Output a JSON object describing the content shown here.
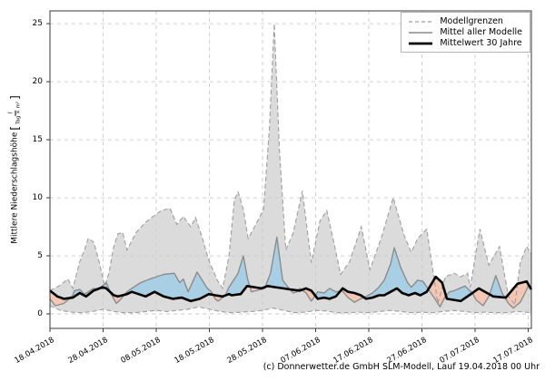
{
  "chart_data": {
    "type": "line",
    "title": "",
    "ylabel": {
      "text": "Mittlere Niederschlagshöhe",
      "bracket_open": "[",
      "unit_numerator": "l",
      "unit_denominator": "Tag × m²",
      "bracket_close": "]"
    },
    "x_ticks": [
      {
        "day": 0,
        "label": "18.04.2018"
      },
      {
        "day": 10,
        "label": "28.04.2018"
      },
      {
        "day": 20,
        "label": "08.05.2018"
      },
      {
        "day": 30,
        "label": "18.05.2018"
      },
      {
        "day": 40,
        "label": "28.05.2018"
      },
      {
        "day": 50,
        "label": "07.06.2018"
      },
      {
        "day": 60,
        "label": "17.06.2018"
      },
      {
        "day": 70,
        "label": "27.06.2018"
      },
      {
        "day": 80,
        "label": "07.07.2018"
      },
      {
        "day": 90,
        "label": "17.07.2018"
      }
    ],
    "y_ticks": [
      0,
      5,
      10,
      15,
      20,
      25
    ],
    "xlim": [
      0,
      90.6
    ],
    "ylim": [
      -1.25,
      26.1
    ],
    "grid": true,
    "legend_position": "top-right",
    "legend": [
      {
        "label": "Modellgrenzen",
        "style": "dashed-gray"
      },
      {
        "label": "Mittel aller Modelle",
        "style": "solid-gray"
      },
      {
        "label": "Mittelwert 30 Jahre",
        "style": "thick-black"
      }
    ],
    "colors": {
      "band_fill": "#dbdbdb",
      "band_edge": "#9e9e9e",
      "above_fill": "#a8cfe4",
      "below_fill": "#f4c6b4",
      "model_mean_line": "#8c8c8c",
      "clim_mean_line": "#000000",
      "grid_line": "#cacaca",
      "spine": "#3a3a3a"
    },
    "series": [
      {
        "name": "Modellgrenzen (oberes Band)",
        "role": "band_upper",
        "points": [
          [
            0,
            2.0
          ],
          [
            1.7,
            2.4
          ],
          [
            3.4,
            3.0
          ],
          [
            4.3,
            2.2
          ],
          [
            5.6,
            4.5
          ],
          [
            6.5,
            5.5
          ],
          [
            7.2,
            6.5
          ],
          [
            8.2,
            6.2
          ],
          [
            9.1,
            4.8
          ],
          [
            10.3,
            2.4
          ],
          [
            11.1,
            3.5
          ],
          [
            12,
            5.8
          ],
          [
            12.8,
            6.9
          ],
          [
            13.7,
            7.0
          ],
          [
            14.5,
            5.5
          ],
          [
            16.2,
            7.0
          ],
          [
            18,
            7.9
          ],
          [
            20.9,
            8.9
          ],
          [
            22.6,
            9.1
          ],
          [
            23.9,
            7.7
          ],
          [
            25.1,
            8.4
          ],
          [
            26.5,
            7.5
          ],
          [
            27.4,
            8.3
          ],
          [
            28.7,
            6.5
          ],
          [
            29.9,
            4.6
          ],
          [
            31.6,
            2.8
          ],
          [
            32.5,
            2.2
          ],
          [
            33.7,
            5.0
          ],
          [
            34.7,
            9.8
          ],
          [
            35.4,
            10.5
          ],
          [
            36.4,
            9.0
          ],
          [
            37.3,
            6.5
          ],
          [
            38.5,
            7.5
          ],
          [
            40.2,
            9.0
          ],
          [
            41.3,
            16.0
          ],
          [
            42.2,
            25.0
          ],
          [
            43.2,
            14.0
          ],
          [
            44.4,
            5.5
          ],
          [
            45.8,
            7.0
          ],
          [
            47.5,
            10.6
          ],
          [
            49.2,
            4.4
          ],
          [
            50.8,
            8.0
          ],
          [
            52.1,
            8.9
          ],
          [
            53.5,
            6.0
          ],
          [
            54.7,
            3.4
          ],
          [
            56.4,
            4.5
          ],
          [
            58.6,
            7.5
          ],
          [
            60.2,
            3.8
          ],
          [
            62.4,
            6.6
          ],
          [
            64.6,
            10.0
          ],
          [
            66.7,
            6.7
          ],
          [
            68,
            5.3
          ],
          [
            69.2,
            6.5
          ],
          [
            70.9,
            7.3
          ],
          [
            73,
            0.9
          ],
          [
            74.4,
            3.2
          ],
          [
            76.1,
            3.5
          ],
          [
            77.3,
            3.2
          ],
          [
            78.6,
            3.5
          ],
          [
            79.1,
            2.3
          ],
          [
            80.9,
            7.3
          ],
          [
            82.6,
            4.2
          ],
          [
            84.6,
            5.8
          ],
          [
            86.3,
            1.5
          ],
          [
            87.5,
            0.8
          ],
          [
            88.5,
            4.4
          ],
          [
            89.7,
            5.8
          ],
          [
            90.6,
            5.2
          ]
        ]
      },
      {
        "name": "Modellgrenzen (unteres Band)",
        "role": "band_lower",
        "points": [
          [
            0,
            0.7
          ],
          [
            2,
            0.3
          ],
          [
            4,
            0.15
          ],
          [
            6,
            0.1
          ],
          [
            8,
            0.2
          ],
          [
            10,
            0.4
          ],
          [
            12,
            0.2
          ],
          [
            14,
            0.1
          ],
          [
            16,
            0.1
          ],
          [
            18,
            0.2
          ],
          [
            20,
            0.3
          ],
          [
            22,
            0.2
          ],
          [
            24,
            0.3
          ],
          [
            26,
            0.4
          ],
          [
            28,
            0.6
          ],
          [
            30,
            0.4
          ],
          [
            32,
            0.2
          ],
          [
            34,
            0.1
          ],
          [
            36,
            0.15
          ],
          [
            38,
            0.2
          ],
          [
            40,
            0.3
          ],
          [
            42,
            0.5
          ],
          [
            44,
            0.3
          ],
          [
            46,
            0.1
          ],
          [
            48,
            0.15
          ],
          [
            50,
            0.3
          ],
          [
            52,
            0.25
          ],
          [
            54,
            0.1
          ],
          [
            56,
            0.1
          ],
          [
            58,
            0.15
          ],
          [
            60,
            0.1
          ],
          [
            62,
            0.2
          ],
          [
            64,
            0.3
          ],
          [
            66,
            0.2
          ],
          [
            68,
            0.1
          ],
          [
            70,
            0.15
          ],
          [
            72,
            0.1
          ],
          [
            74,
            0.2
          ],
          [
            76,
            0.3
          ],
          [
            78,
            0.2
          ],
          [
            80,
            0.1
          ],
          [
            82,
            0.15
          ],
          [
            84,
            0.1
          ],
          [
            86,
            0.1
          ],
          [
            88,
            0.2
          ],
          [
            90.6,
            0.1
          ]
        ]
      },
      {
        "name": "Mittel aller Modelle",
        "role": "model_mean",
        "points": [
          [
            0,
            1.3
          ],
          [
            1,
            0.7
          ],
          [
            2.6,
            0.9
          ],
          [
            3.4,
            1.2
          ],
          [
            4.3,
            1.6
          ],
          [
            4.6,
            2.0
          ],
          [
            5.6,
            2.1
          ],
          [
            6.5,
            1.7
          ],
          [
            7.2,
            1.9
          ],
          [
            8.2,
            2.2
          ],
          [
            9.1,
            2.1
          ],
          [
            10.6,
            2.7
          ],
          [
            11.5,
            1.7
          ],
          [
            12.5,
            0.9
          ],
          [
            13.2,
            1.2
          ],
          [
            14.5,
            1.9
          ],
          [
            15.4,
            2.2
          ],
          [
            17.1,
            2.7
          ],
          [
            18.8,
            3.0
          ],
          [
            21.4,
            3.4
          ],
          [
            23.4,
            3.5
          ],
          [
            24.4,
            2.7
          ],
          [
            25.1,
            3.0
          ],
          [
            26,
            1.9
          ],
          [
            27.7,
            3.6
          ],
          [
            29.6,
            2.2
          ],
          [
            30.4,
            1.9
          ],
          [
            31.1,
            1.3
          ],
          [
            31.6,
            1.1
          ],
          [
            32.5,
            1.4
          ],
          [
            33,
            1.6
          ],
          [
            33.7,
            2.3
          ],
          [
            34.7,
            3.0
          ],
          [
            35.4,
            3.5
          ],
          [
            36.4,
            5.0
          ],
          [
            37.2,
            3.0
          ],
          [
            37.9,
            1.9
          ],
          [
            38.8,
            2.0
          ],
          [
            40.4,
            2.2
          ],
          [
            41.5,
            3.5
          ],
          [
            42.7,
            6.6
          ],
          [
            43.8,
            2.9
          ],
          [
            44.8,
            2.3
          ],
          [
            45.8,
            1.8
          ],
          [
            46.5,
            1.9
          ],
          [
            47,
            2.2
          ],
          [
            48.2,
            1.8
          ],
          [
            49.2,
            1.1
          ],
          [
            50.4,
            1.9
          ],
          [
            51.6,
            1.8
          ],
          [
            52.6,
            2.2
          ],
          [
            53.8,
            1.9
          ],
          [
            55,
            2.0
          ],
          [
            56.1,
            1.4
          ],
          [
            57.3,
            1.0
          ],
          [
            58.5,
            1.3
          ],
          [
            59.5,
            1.5
          ],
          [
            60.7,
            1.8
          ],
          [
            61.9,
            2.3
          ],
          [
            62.9,
            2.9
          ],
          [
            64.1,
            4.3
          ],
          [
            64.8,
            5.7
          ],
          [
            66,
            4.0
          ],
          [
            67.3,
            2.7
          ],
          [
            68,
            2.3
          ],
          [
            69.2,
            2.9
          ],
          [
            70.2,
            2.8
          ],
          [
            71.1,
            2.2
          ],
          [
            72.3,
            1.4
          ],
          [
            73.4,
            0.6
          ],
          [
            74.4,
            1.5
          ],
          [
            75.2,
            1.9
          ],
          [
            76.1,
            2.0
          ],
          [
            78.1,
            2.4
          ],
          [
            79.5,
            1.8
          ],
          [
            80.2,
            1.2
          ],
          [
            81.5,
            0.7
          ],
          [
            82.6,
            1.5
          ],
          [
            83.9,
            3.3
          ],
          [
            85.1,
            1.8
          ],
          [
            86.3,
            0.9
          ],
          [
            87.2,
            0.5
          ],
          [
            88.5,
            1.0
          ],
          [
            89.2,
            1.6
          ],
          [
            90,
            2.4
          ],
          [
            90.6,
            2.3
          ]
        ]
      },
      {
        "name": "Mittelwert 30 Jahre",
        "role": "clim_mean",
        "points": [
          [
            0,
            2.0
          ],
          [
            1.4,
            1.5
          ],
          [
            2.6,
            1.3
          ],
          [
            4.3,
            1.4
          ],
          [
            5.6,
            1.8
          ],
          [
            6.8,
            1.5
          ],
          [
            8.2,
            2.0
          ],
          [
            9.9,
            2.3
          ],
          [
            10.6,
            2.2
          ],
          [
            12,
            1.6
          ],
          [
            12.8,
            1.5
          ],
          [
            14.5,
            1.7
          ],
          [
            15.4,
            1.9
          ],
          [
            18,
            1.5
          ],
          [
            19.7,
            1.9
          ],
          [
            21.4,
            1.5
          ],
          [
            23.1,
            1.3
          ],
          [
            24.8,
            1.4
          ],
          [
            26.5,
            1.1
          ],
          [
            28.2,
            1.3
          ],
          [
            29.9,
            1.7
          ],
          [
            31.1,
            1.6
          ],
          [
            32.5,
            1.5
          ],
          [
            33.7,
            1.7
          ],
          [
            34.2,
            1.6
          ],
          [
            35.9,
            1.7
          ],
          [
            37.1,
            2.4
          ],
          [
            38.5,
            2.3
          ],
          [
            39.8,
            2.2
          ],
          [
            41,
            2.4
          ],
          [
            42.4,
            2.3
          ],
          [
            43.9,
            2.2
          ],
          [
            45.3,
            2.1
          ],
          [
            47,
            2.0
          ],
          [
            48.2,
            2.2
          ],
          [
            49.2,
            2.0
          ],
          [
            50.4,
            1.3
          ],
          [
            51.6,
            1.4
          ],
          [
            52.6,
            1.3
          ],
          [
            53.8,
            1.5
          ],
          [
            55.1,
            2.2
          ],
          [
            56.1,
            1.9
          ],
          [
            57.3,
            1.8
          ],
          [
            58.5,
            1.6
          ],
          [
            59.5,
            1.3
          ],
          [
            60.7,
            1.4
          ],
          [
            61.9,
            1.6
          ],
          [
            62.9,
            1.6
          ],
          [
            64.1,
            1.9
          ],
          [
            65.3,
            2.2
          ],
          [
            66.3,
            1.8
          ],
          [
            67.5,
            1.6
          ],
          [
            68.7,
            1.8
          ],
          [
            69.7,
            1.6
          ],
          [
            70.9,
            1.9
          ],
          [
            71.3,
            2.2
          ],
          [
            72.6,
            3.2
          ],
          [
            73.8,
            2.7
          ],
          [
            74.7,
            1.3
          ],
          [
            77.3,
            1.1
          ],
          [
            79.5,
            1.8
          ],
          [
            80.7,
            2.2
          ],
          [
            83.4,
            1.5
          ],
          [
            85.8,
            1.4
          ],
          [
            88,
            2.6
          ],
          [
            89.7,
            2.8
          ],
          [
            90.6,
            2.1
          ]
        ]
      }
    ]
  },
  "footer": {
    "copyright": "(c) Donnerwetter.de GmbH SLM-Modell, Lauf 19.04.2018 00 Uhr"
  }
}
